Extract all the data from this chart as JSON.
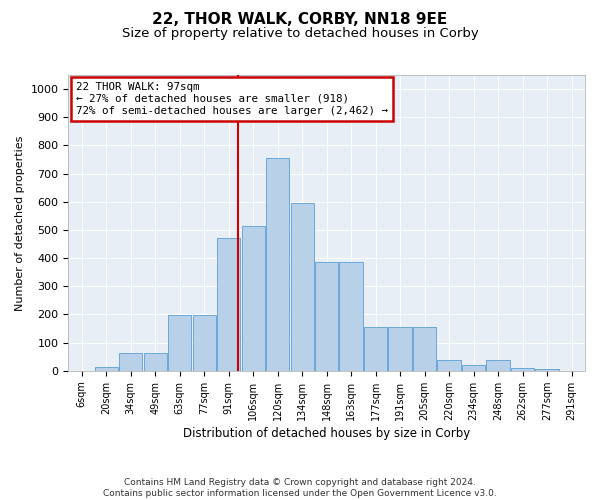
{
  "title": "22, THOR WALK, CORBY, NN18 9EE",
  "subtitle": "Size of property relative to detached houses in Corby",
  "xlabel": "Distribution of detached houses by size in Corby",
  "ylabel": "Number of detached properties",
  "footer_line1": "Contains HM Land Registry data © Crown copyright and database right 2024.",
  "footer_line2": "Contains public sector information licensed under the Open Government Licence v3.0.",
  "bins": [
    "6sqm",
    "20sqm",
    "34sqm",
    "49sqm",
    "63sqm",
    "77sqm",
    "91sqm",
    "106sqm",
    "120sqm",
    "134sqm",
    "148sqm",
    "163sqm",
    "177sqm",
    "191sqm",
    "205sqm",
    "220sqm",
    "234sqm",
    "248sqm",
    "262sqm",
    "277sqm",
    "291sqm"
  ],
  "bar_heights": [
    0,
    12,
    65,
    65,
    197,
    197,
    470,
    515,
    755,
    595,
    385,
    385,
    157,
    157,
    157,
    38,
    20,
    40,
    10,
    5,
    0
  ],
  "bar_color": "#b8d0e8",
  "bar_edge_color": "#5a9fd4",
  "annotation_text": "22 THOR WALK: 97sqm\n← 27% of detached houses are smaller (918)\n72% of semi-detached houses are larger (2,462) →",
  "annotation_box_color": "#ffffff",
  "annotation_box_edge": "#cc0000",
  "ref_line_color": "#cc0000",
  "ylim": [
    0,
    1050
  ],
  "yticks": [
    0,
    100,
    200,
    300,
    400,
    500,
    600,
    700,
    800,
    900,
    1000
  ],
  "plot_bg_color": "#e8eef5",
  "title_fontsize": 11,
  "subtitle_fontsize": 9.5
}
